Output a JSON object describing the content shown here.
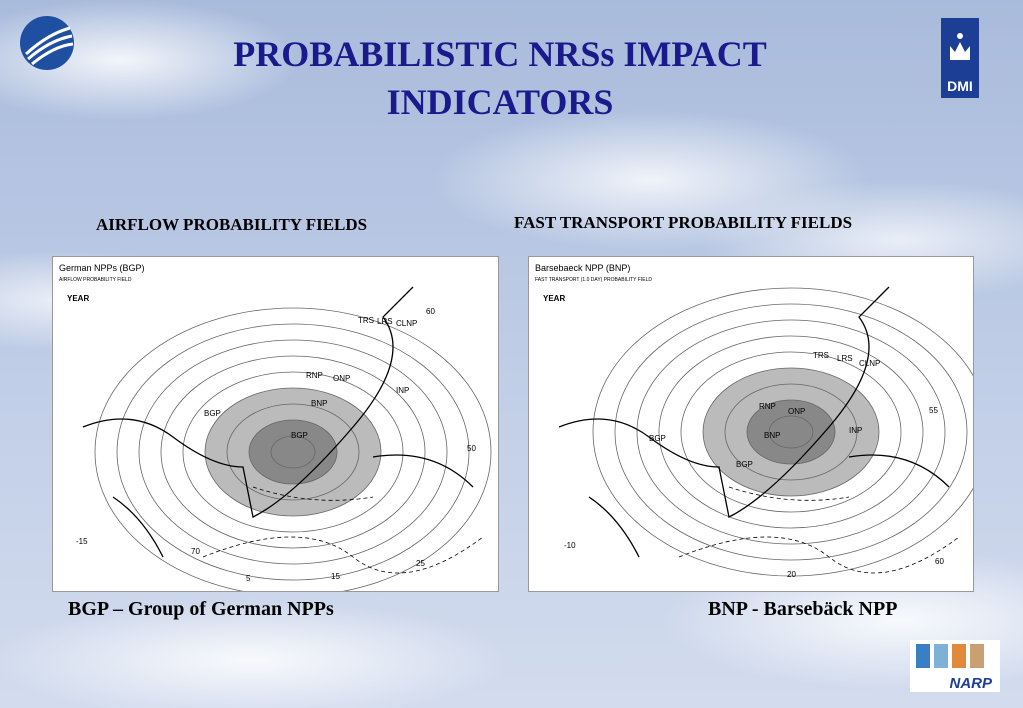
{
  "slide": {
    "title": "PROBABILISTIC NRSs IMPACT INDICATORS",
    "logos": {
      "dmi": "DMI",
      "narp": "NARP"
    },
    "panels": [
      {
        "heading": "AIRFLOW PROBABILITY FIELDS",
        "caption": "BGP – Group of German NPPs",
        "map": {
          "title": "German NPPs (BGP)",
          "subtitle": "AIRFLOW PROBABILITY FIELD",
          "period": "YEAR",
          "labels": [
            "TRS",
            "LRS",
            "CLNP",
            "RNP",
            "ONP",
            "INP",
            "BGP",
            "BNP",
            "BGP",
            "60",
            "50",
            "-15",
            "5",
            "15",
            "25",
            "70"
          ]
        }
      },
      {
        "heading": "FAST TRANSPORT PROBABILITY FIELDS",
        "caption": "BNP - Barsebäck NPP",
        "map": {
          "title": "Barsebaeck NPP (BNP)",
          "subtitle": "FAST TRANSPORT (1.0 DAY) PROBABILITY FIELD",
          "period": "YEAR",
          "labels": [
            "TRS",
            "LRS",
            "CLNP",
            "RNP",
            "ONP",
            "INP",
            "BGP",
            "BNP",
            "BGP",
            "55",
            "-10",
            "20",
            "60"
          ]
        }
      }
    ]
  }
}
